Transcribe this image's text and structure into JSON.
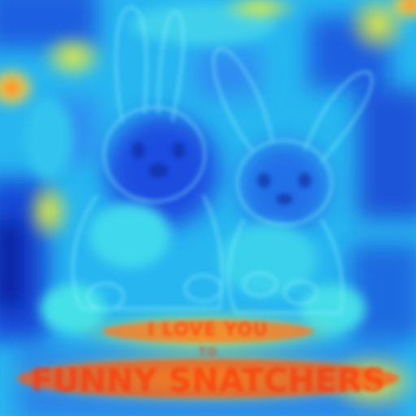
{
  "image": {
    "kind": "attention heatmap overlay on an illustration",
    "subject": "two cartoon bunnies sitting side by side",
    "colormap": "jet",
    "colors": {
      "low": "#0a1ea0",
      "mid_low": "#1f7be0",
      "mid": "#2fe3e8",
      "mid_high": "#e8f040",
      "high": "#f02010"
    }
  },
  "caption": {
    "line1": "I LOVE YOU",
    "line2": "TO",
    "line3": "FUNNY SNATCHERS"
  }
}
